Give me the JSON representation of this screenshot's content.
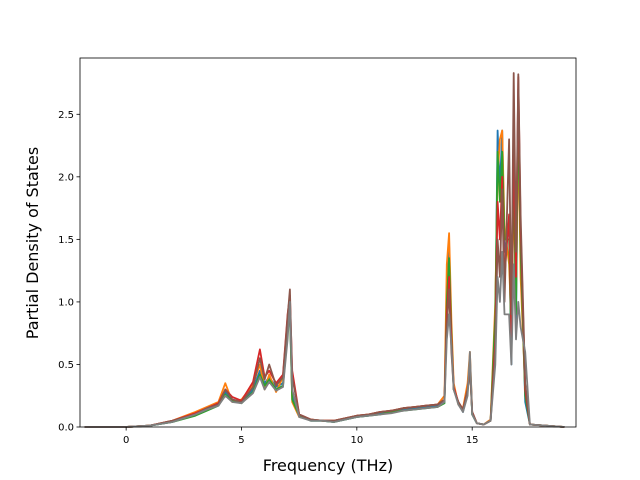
{
  "chart_data": {
    "type": "line",
    "title": "",
    "xlabel": "Frequency (THz)",
    "ylabel": "Partial Density of States",
    "xlim": [
      -2.0,
      19.5
    ],
    "ylim": [
      0.0,
      2.95
    ],
    "grid": false,
    "legend": "none",
    "x_ticks": [
      0,
      5,
      10,
      15
    ],
    "x_tick_labels": [
      "0",
      "5",
      "10",
      "15"
    ],
    "y_ticks": [
      0.0,
      0.5,
      1.0,
      1.5,
      2.0,
      2.5
    ],
    "y_tick_labels": [
      "0.0",
      "0.5",
      "1.0",
      "1.5",
      "2.0",
      "2.5"
    ],
    "series": [
      {
        "color": "#1f77b4",
        "x": [
          -1.8,
          0,
          1,
          2,
          3,
          3.5,
          4,
          4.3,
          4.6,
          5,
          5.5,
          5.8,
          6,
          6.2,
          6.5,
          6.8,
          7,
          7.1,
          7.2,
          7.5,
          8,
          8.5,
          9,
          9.5,
          10,
          10.5,
          11,
          11.5,
          12,
          12.5,
          13,
          13.5,
          13.8,
          13.9,
          14.0,
          14.1,
          14.2,
          14.4,
          14.6,
          14.8,
          14.9,
          15.0,
          15.2,
          15.5,
          15.8,
          16.0,
          16.1,
          16.2,
          16.3,
          16.4,
          16.6,
          16.7,
          16.8,
          16.9,
          17.0,
          17.1,
          17.3,
          17.5,
          19.0
        ],
        "y": [
          0,
          0,
          0.01,
          0.04,
          0.1,
          0.14,
          0.18,
          0.28,
          0.22,
          0.2,
          0.3,
          0.45,
          0.35,
          0.4,
          0.32,
          0.35,
          0.8,
          0.9,
          0.25,
          0.1,
          0.05,
          0.05,
          0.04,
          0.06,
          0.08,
          0.09,
          0.11,
          0.12,
          0.14,
          0.15,
          0.16,
          0.17,
          0.2,
          1.1,
          1.45,
          0.7,
          0.3,
          0.2,
          0.12,
          0.3,
          0.55,
          0.1,
          0.03,
          0.02,
          0.05,
          0.8,
          2.37,
          1.9,
          2.37,
          1.4,
          1.6,
          0.5,
          2.2,
          0.8,
          2.7,
          1.5,
          0.2,
          0.02,
          0
        ]
      },
      {
        "color": "#ff7f0e",
        "x": [
          -1.8,
          0,
          1,
          2,
          3,
          3.5,
          4,
          4.3,
          4.6,
          5,
          5.5,
          5.8,
          6,
          6.2,
          6.5,
          6.8,
          7,
          7.1,
          7.2,
          7.5,
          8,
          8.5,
          9,
          9.5,
          10,
          10.5,
          11,
          11.5,
          12,
          12.5,
          13,
          13.5,
          13.8,
          13.9,
          14.0,
          14.1,
          14.2,
          14.4,
          14.6,
          14.8,
          14.9,
          15.0,
          15.2,
          15.5,
          15.8,
          16.0,
          16.1,
          16.2,
          16.3,
          16.4,
          16.6,
          16.7,
          16.8,
          16.9,
          17.0,
          17.1,
          17.3,
          17.5,
          19.0
        ],
        "y": [
          0,
          0,
          0.01,
          0.05,
          0.12,
          0.16,
          0.2,
          0.35,
          0.2,
          0.22,
          0.34,
          0.5,
          0.3,
          0.42,
          0.28,
          0.4,
          0.85,
          1.0,
          0.2,
          0.08,
          0.06,
          0.05,
          0.05,
          0.07,
          0.09,
          0.1,
          0.12,
          0.13,
          0.15,
          0.16,
          0.17,
          0.18,
          0.25,
          1.3,
          1.55,
          0.85,
          0.35,
          0.18,
          0.15,
          0.35,
          0.6,
          0.12,
          0.03,
          0.02,
          0.06,
          1.0,
          2.0,
          2.3,
          2.37,
          1.6,
          1.3,
          0.8,
          1.9,
          1.0,
          2.4,
          1.2,
          0.3,
          0.02,
          0
        ]
      },
      {
        "color": "#2ca02c",
        "x": [
          -1.8,
          0,
          1,
          2,
          3,
          3.5,
          4,
          4.3,
          4.6,
          5,
          5.5,
          5.8,
          6,
          6.2,
          6.5,
          6.8,
          7,
          7.1,
          7.2,
          7.5,
          8,
          8.5,
          9,
          9.5,
          10,
          10.5,
          11,
          11.5,
          12,
          12.5,
          13,
          13.5,
          13.8,
          13.9,
          14.0,
          14.1,
          14.2,
          14.4,
          14.6,
          14.8,
          14.9,
          15.0,
          15.2,
          15.5,
          15.8,
          16.0,
          16.1,
          16.2,
          16.3,
          16.4,
          16.6,
          16.7,
          16.8,
          16.9,
          17.0,
          17.1,
          17.3,
          17.5,
          19.0
        ],
        "y": [
          0,
          0,
          0.01,
          0.04,
          0.09,
          0.13,
          0.17,
          0.26,
          0.21,
          0.19,
          0.28,
          0.42,
          0.33,
          0.38,
          0.3,
          0.33,
          0.75,
          0.95,
          0.22,
          0.09,
          0.05,
          0.05,
          0.04,
          0.06,
          0.08,
          0.09,
          0.1,
          0.12,
          0.13,
          0.14,
          0.15,
          0.16,
          0.19,
          1.0,
          1.35,
          0.75,
          0.3,
          0.2,
          0.13,
          0.28,
          0.5,
          0.1,
          0.03,
          0.02,
          0.05,
          0.9,
          2.2,
          1.8,
          2.2,
          1.5,
          1.5,
          0.6,
          2.1,
          0.9,
          2.6,
          1.4,
          0.25,
          0.02,
          0
        ]
      },
      {
        "color": "#d62728",
        "x": [
          -1.8,
          0,
          1,
          2,
          3,
          3.5,
          4,
          4.3,
          4.6,
          5,
          5.5,
          5.8,
          6,
          6.2,
          6.5,
          6.8,
          7,
          7.1,
          7.2,
          7.5,
          8,
          8.5,
          9,
          9.5,
          10,
          10.5,
          11,
          11.5,
          12,
          12.5,
          13,
          13.5,
          13.8,
          13.9,
          14.0,
          14.1,
          14.2,
          14.4,
          14.6,
          14.8,
          14.9,
          15.0,
          15.2,
          15.5,
          15.8,
          16.0,
          16.1,
          16.2,
          16.3,
          16.4,
          16.6,
          16.7,
          16.8,
          16.9,
          17.0,
          17.1,
          17.3,
          17.5,
          19.0
        ],
        "y": [
          0,
          0,
          0.01,
          0.05,
          0.11,
          0.15,
          0.19,
          0.3,
          0.24,
          0.21,
          0.36,
          0.62,
          0.4,
          0.45,
          0.35,
          0.42,
          0.9,
          1.05,
          0.45,
          0.1,
          0.06,
          0.05,
          0.05,
          0.07,
          0.09,
          0.1,
          0.12,
          0.13,
          0.15,
          0.16,
          0.17,
          0.18,
          0.22,
          0.9,
          1.2,
          0.7,
          0.32,
          0.2,
          0.14,
          0.3,
          0.5,
          0.12,
          0.03,
          0.02,
          0.05,
          0.7,
          1.8,
          1.5,
          2.0,
          1.2,
          1.7,
          0.7,
          2.3,
          1.2,
          2.8,
          1.6,
          0.3,
          0.02,
          0
        ]
      },
      {
        "color": "#8c564b",
        "x": [
          -1.8,
          0,
          1,
          2,
          3,
          3.5,
          4,
          4.3,
          4.6,
          5,
          5.5,
          5.8,
          6,
          6.2,
          6.5,
          6.8,
          7,
          7.1,
          7.2,
          7.5,
          8,
          8.5,
          9,
          9.5,
          10,
          10.5,
          11,
          11.5,
          12,
          12.5,
          13,
          13.5,
          13.8,
          13.9,
          14.0,
          14.1,
          14.2,
          14.4,
          14.6,
          14.8,
          14.9,
          15.0,
          15.2,
          15.5,
          15.8,
          16.0,
          16.1,
          16.2,
          16.3,
          16.4,
          16.6,
          16.7,
          16.8,
          16.9,
          17.0,
          17.1,
          17.3,
          17.5,
          19.0
        ],
        "y": [
          0,
          0,
          0.01,
          0.05,
          0.1,
          0.15,
          0.18,
          0.3,
          0.22,
          0.2,
          0.32,
          0.55,
          0.38,
          0.5,
          0.33,
          0.4,
          0.88,
          1.1,
          0.4,
          0.1,
          0.06,
          0.05,
          0.05,
          0.07,
          0.09,
          0.1,
          0.12,
          0.13,
          0.15,
          0.16,
          0.17,
          0.18,
          0.22,
          0.8,
          1.1,
          0.6,
          0.3,
          0.2,
          0.14,
          0.3,
          0.45,
          0.12,
          0.03,
          0.02,
          0.05,
          0.6,
          1.5,
          1.2,
          1.9,
          1.0,
          2.3,
          0.9,
          2.83,
          1.4,
          2.82,
          1.7,
          0.35,
          0.02,
          0
        ]
      },
      {
        "color": "#7f7f7f",
        "x": [
          -1.8,
          0,
          1,
          2,
          3,
          3.5,
          4,
          4.3,
          4.6,
          5,
          5.5,
          5.8,
          6,
          6.2,
          6.5,
          6.8,
          7,
          7.1,
          7.2,
          7.5,
          8,
          8.5,
          9,
          9.5,
          10,
          10.5,
          11,
          11.5,
          12,
          12.5,
          13,
          13.5,
          13.8,
          13.9,
          14.0,
          14.1,
          14.2,
          14.4,
          14.6,
          14.8,
          14.9,
          15.0,
          15.2,
          15.5,
          15.8,
          16.0,
          16.1,
          16.2,
          16.3,
          16.4,
          16.6,
          16.7,
          16.8,
          16.9,
          17.0,
          17.1,
          17.3,
          17.5,
          19.0
        ],
        "y": [
          0,
          0,
          0.01,
          0.04,
          0.1,
          0.14,
          0.17,
          0.25,
          0.2,
          0.19,
          0.27,
          0.4,
          0.3,
          0.36,
          0.29,
          0.32,
          0.7,
          1.0,
          0.3,
          0.08,
          0.05,
          0.05,
          0.04,
          0.06,
          0.08,
          0.09,
          0.1,
          0.11,
          0.13,
          0.14,
          0.15,
          0.16,
          0.2,
          0.7,
          0.9,
          0.65,
          0.3,
          0.18,
          0.12,
          0.25,
          0.6,
          0.1,
          0.03,
          0.02,
          0.05,
          0.5,
          1.2,
          1.0,
          1.4,
          0.9,
          0.9,
          0.5,
          1.3,
          0.7,
          1.0,
          0.8,
          0.6,
          0.02,
          0
        ]
      }
    ]
  }
}
